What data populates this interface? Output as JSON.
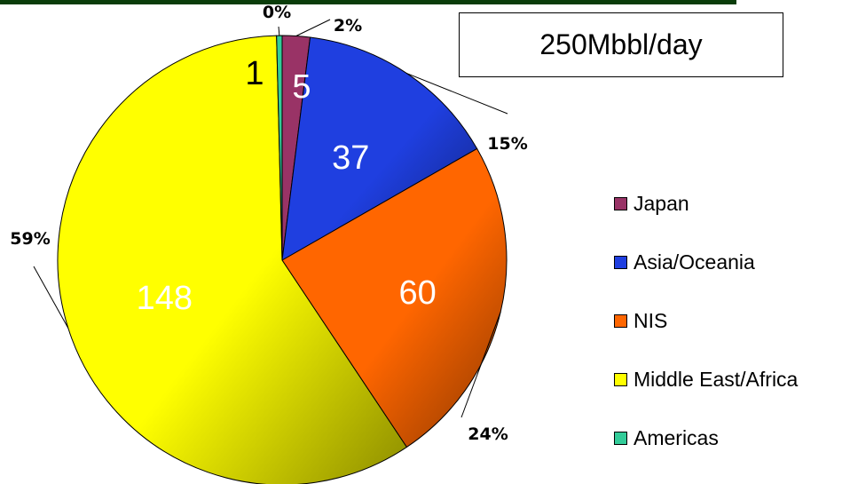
{
  "chart_data": {
    "type": "pie",
    "title": "250Mbbl/day",
    "slices": [
      {
        "name": "Japan",
        "value": 5,
        "percent_label": "2%",
        "color": "#993366"
      },
      {
        "name": "Asia/Oceania",
        "value": 37,
        "percent_label": "15%",
        "color": "#1f3fe0"
      },
      {
        "name": "NIS",
        "value": 60,
        "percent_label": "24%",
        "color": "#ff6600"
      },
      {
        "name": "Middle East/Africa",
        "value": 148,
        "percent_label": "59%",
        "color": "#ffff00"
      },
      {
        "name": "Americas",
        "value": 1,
        "percent_label": "0%",
        "color": "#33cc99"
      }
    ],
    "legend_position": "right",
    "start": "top",
    "direction": "clockwise"
  }
}
